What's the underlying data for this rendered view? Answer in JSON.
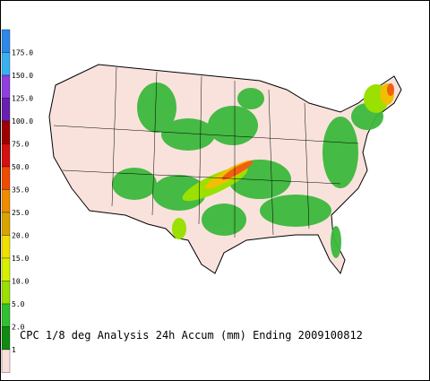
{
  "legend": {
    "labels": [
      "175.0",
      "150.0",
      "125.0",
      "100.0",
      "75.0",
      "50.0",
      "35.0",
      "25.0",
      "20.0",
      "15.0",
      "10.0",
      "5.0",
      "2.0",
      "1"
    ],
    "colors": [
      "#2f88e8",
      "#3ab0f0",
      "#8d3fe0",
      "#6a1fb0",
      "#9e0000",
      "#d41010",
      "#f04a00",
      "#f08c00",
      "#d8a400",
      "#f0e000",
      "#d6f000",
      "#9ae000",
      "#30c030",
      "#108a10",
      "#f8e0da"
    ]
  },
  "caption": "CPC 1/8 deg Analysis 24h Accum (mm) Ending 2009100812"
}
